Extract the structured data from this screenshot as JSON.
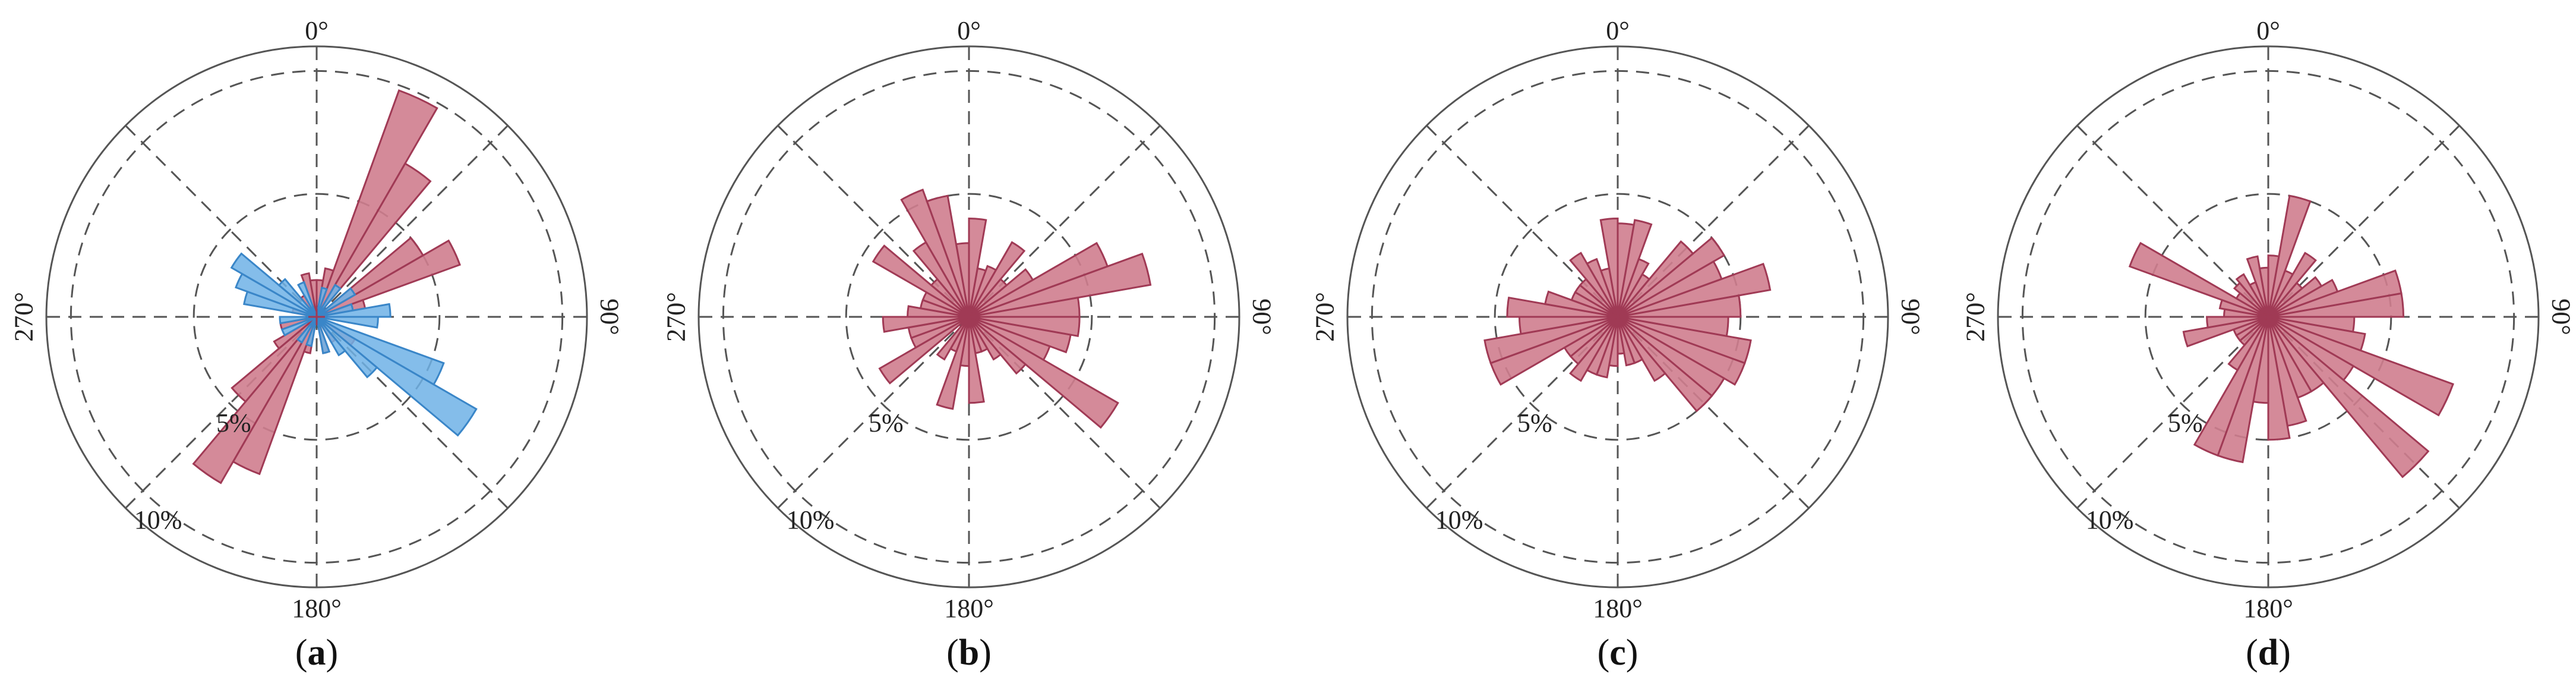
{
  "colors": {
    "primary_fill": "#cf7d8e",
    "primary_stroke": "#a03a55",
    "secondary_fill": "#6fb2e6",
    "secondary_stroke": "#3a86c8",
    "axis": "#555555"
  },
  "chart_data": [
    {
      "type": "polar-bar",
      "caption_letter": "a",
      "direction_labels": [
        "0°",
        "90°",
        "180°",
        "270°"
      ],
      "rings": [
        {
          "value": 5,
          "label": "5%"
        },
        {
          "value": 10,
          "label": "10%"
        }
      ],
      "rmax": 11,
      "bin_width_deg": 10,
      "series": [
        {
          "color_key": "primary",
          "bins": [
            {
              "angle": 5,
              "value": 1.5
            },
            {
              "angle": 15,
              "value": 2.0
            },
            {
              "angle": 25,
              "value": 9.8
            },
            {
              "angle": 35,
              "value": 7.2
            },
            {
              "angle": 55,
              "value": 5.0
            },
            {
              "angle": 65,
              "value": 6.2
            },
            {
              "angle": 75,
              "value": 2.0
            },
            {
              "angle": 125,
              "value": 1.8
            },
            {
              "angle": 145,
              "value": 1.2
            },
            {
              "angle": 165,
              "value": 1.5
            },
            {
              "angle": 195,
              "value": 1.5
            },
            {
              "angle": 205,
              "value": 6.8
            },
            {
              "angle": 215,
              "value": 7.8
            },
            {
              "angle": 225,
              "value": 4.5
            },
            {
              "angle": 235,
              "value": 2.0
            },
            {
              "angle": 255,
              "value": 1.5
            },
            {
              "angle": 285,
              "value": 1.0
            },
            {
              "angle": 325,
              "value": 1.0
            },
            {
              "angle": 345,
              "value": 1.8
            },
            {
              "angle": 355,
              "value": 1.5
            }
          ]
        },
        {
          "color_key": "secondary",
          "bins": [
            {
              "angle": 15,
              "value": 1.2
            },
            {
              "angle": 35,
              "value": 1.5
            },
            {
              "angle": 55,
              "value": 1.8
            },
            {
              "angle": 75,
              "value": 1.5
            },
            {
              "angle": 85,
              "value": 3.0
            },
            {
              "angle": 95,
              "value": 2.5
            },
            {
              "angle": 115,
              "value": 5.5
            },
            {
              "angle": 125,
              "value": 7.5
            },
            {
              "angle": 135,
              "value": 3.2
            },
            {
              "angle": 145,
              "value": 1.8
            },
            {
              "angle": 165,
              "value": 1.5
            },
            {
              "angle": 195,
              "value": 1.2
            },
            {
              "angle": 215,
              "value": 1.2
            },
            {
              "angle": 245,
              "value": 1.5
            },
            {
              "angle": 265,
              "value": 1.5
            },
            {
              "angle": 285,
              "value": 3.0
            },
            {
              "angle": 295,
              "value": 3.5
            },
            {
              "angle": 305,
              "value": 4.0
            },
            {
              "angle": 315,
              "value": 2.0
            },
            {
              "angle": 335,
              "value": 1.5
            }
          ]
        }
      ]
    },
    {
      "type": "polar-bar",
      "caption_letter": "b",
      "direction_labels": [
        "0°",
        "90°",
        "180°",
        "270°"
      ],
      "rings": [
        {
          "value": 5,
          "label": "5%"
        },
        {
          "value": 10,
          "label": "10%"
        }
      ],
      "rmax": 11,
      "bin_width_deg": 10,
      "series": [
        {
          "color_key": "primary",
          "bins": [
            {
              "angle": 5,
              "value": 4.0
            },
            {
              "angle": 15,
              "value": 2.0
            },
            {
              "angle": 25,
              "value": 2.2
            },
            {
              "angle": 35,
              "value": 3.5
            },
            {
              "angle": 45,
              "value": 2.0
            },
            {
              "angle": 55,
              "value": 3.0
            },
            {
              "angle": 65,
              "value": 6.0
            },
            {
              "angle": 75,
              "value": 7.5
            },
            {
              "angle": 85,
              "value": 4.5
            },
            {
              "angle": 95,
              "value": 4.5
            },
            {
              "angle": 105,
              "value": 4.2
            },
            {
              "angle": 115,
              "value": 3.5
            },
            {
              "angle": 125,
              "value": 7.0
            },
            {
              "angle": 135,
              "value": 3.0
            },
            {
              "angle": 145,
              "value": 2.0
            },
            {
              "angle": 155,
              "value": 1.5
            },
            {
              "angle": 165,
              "value": 1.5
            },
            {
              "angle": 175,
              "value": 3.5
            },
            {
              "angle": 185,
              "value": 2.0
            },
            {
              "angle": 195,
              "value": 3.8
            },
            {
              "angle": 205,
              "value": 1.5
            },
            {
              "angle": 215,
              "value": 2.0
            },
            {
              "angle": 235,
              "value": 4.2
            },
            {
              "angle": 245,
              "value": 2.5
            },
            {
              "angle": 255,
              "value": 2.5
            },
            {
              "angle": 265,
              "value": 3.5
            },
            {
              "angle": 275,
              "value": 2.5
            },
            {
              "angle": 285,
              "value": 2.0
            },
            {
              "angle": 295,
              "value": 2.0
            },
            {
              "angle": 305,
              "value": 4.5
            },
            {
              "angle": 315,
              "value": 2.0
            },
            {
              "angle": 325,
              "value": 3.5
            },
            {
              "angle": 335,
              "value": 5.5
            },
            {
              "angle": 345,
              "value": 5.0
            },
            {
              "angle": 355,
              "value": 3.0
            }
          ]
        }
      ]
    },
    {
      "type": "polar-bar",
      "caption_letter": "c",
      "direction_labels": [
        "0°",
        "90°",
        "180°",
        "270°"
      ],
      "rings": [
        {
          "value": 5,
          "label": "5%"
        },
        {
          "value": 10,
          "label": "10%"
        }
      ],
      "rmax": 11,
      "bin_width_deg": 10,
      "series": [
        {
          "color_key": "primary",
          "bins": [
            {
              "angle": 5,
              "value": 3.8
            },
            {
              "angle": 15,
              "value": 4.0
            },
            {
              "angle": 25,
              "value": 2.5
            },
            {
              "angle": 35,
              "value": 2.0
            },
            {
              "angle": 45,
              "value": 4.0
            },
            {
              "angle": 55,
              "value": 5.0
            },
            {
              "angle": 65,
              "value": 4.5
            },
            {
              "angle": 75,
              "value": 6.3
            },
            {
              "angle": 85,
              "value": 5.0
            },
            {
              "angle": 95,
              "value": 4.5
            },
            {
              "angle": 105,
              "value": 5.5
            },
            {
              "angle": 115,
              "value": 5.5
            },
            {
              "angle": 125,
              "value": 5.0
            },
            {
              "angle": 135,
              "value": 5.0
            },
            {
              "angle": 145,
              "value": 3.0
            },
            {
              "angle": 155,
              "value": 2.0
            },
            {
              "angle": 165,
              "value": 2.0
            },
            {
              "angle": 175,
              "value": 1.5
            },
            {
              "angle": 185,
              "value": 2.0
            },
            {
              "angle": 195,
              "value": 2.5
            },
            {
              "angle": 205,
              "value": 2.5
            },
            {
              "angle": 215,
              "value": 3.0
            },
            {
              "angle": 225,
              "value": 2.5
            },
            {
              "angle": 235,
              "value": 2.5
            },
            {
              "angle": 245,
              "value": 5.5
            },
            {
              "angle": 255,
              "value": 5.5
            },
            {
              "angle": 265,
              "value": 4.0
            },
            {
              "angle": 275,
              "value": 4.5
            },
            {
              "angle": 285,
              "value": 3.0
            },
            {
              "angle": 295,
              "value": 2.0
            },
            {
              "angle": 305,
              "value": 2.0
            },
            {
              "angle": 315,
              "value": 2.0
            },
            {
              "angle": 325,
              "value": 3.0
            },
            {
              "angle": 335,
              "value": 2.5
            },
            {
              "angle": 345,
              "value": 2.0
            },
            {
              "angle": 355,
              "value": 4.0
            }
          ]
        }
      ]
    },
    {
      "type": "polar-bar",
      "caption_letter": "d",
      "direction_labels": [
        "0°",
        "90°",
        "180°",
        "270°"
      ],
      "rings": [
        {
          "value": 5,
          "label": "5%"
        },
        {
          "value": 10,
          "label": "10%"
        }
      ],
      "rmax": 11,
      "bin_width_deg": 10,
      "series": [
        {
          "color_key": "primary",
          "bins": [
            {
              "angle": 5,
              "value": 2.5
            },
            {
              "angle": 15,
              "value": 5.0
            },
            {
              "angle": 25,
              "value": 2.0
            },
            {
              "angle": 35,
              "value": 3.0
            },
            {
              "angle": 45,
              "value": 1.8
            },
            {
              "angle": 55,
              "value": 2.5
            },
            {
              "angle": 65,
              "value": 3.0
            },
            {
              "angle": 75,
              "value": 5.5
            },
            {
              "angle": 85,
              "value": 5.5
            },
            {
              "angle": 95,
              "value": 3.5
            },
            {
              "angle": 105,
              "value": 4.0
            },
            {
              "angle": 115,
              "value": 8.0
            },
            {
              "angle": 125,
              "value": 4.0
            },
            {
              "angle": 135,
              "value": 8.5
            },
            {
              "angle": 145,
              "value": 3.5
            },
            {
              "angle": 155,
              "value": 3.5
            },
            {
              "angle": 165,
              "value": 4.5
            },
            {
              "angle": 175,
              "value": 5.0
            },
            {
              "angle": 185,
              "value": 3.5
            },
            {
              "angle": 195,
              "value": 6.0
            },
            {
              "angle": 205,
              "value": 6.0
            },
            {
              "angle": 215,
              "value": 2.5
            },
            {
              "angle": 225,
              "value": 1.5
            },
            {
              "angle": 235,
              "value": 1.5
            },
            {
              "angle": 245,
              "value": 1.5
            },
            {
              "angle": 255,
              "value": 3.5
            },
            {
              "angle": 265,
              "value": 2.5
            },
            {
              "angle": 275,
              "value": 1.8
            },
            {
              "angle": 285,
              "value": 2.0
            },
            {
              "angle": 295,
              "value": 6.0
            },
            {
              "angle": 305,
              "value": 1.5
            },
            {
              "angle": 315,
              "value": 1.8
            },
            {
              "angle": 325,
              "value": 2.0
            },
            {
              "angle": 335,
              "value": 1.5
            },
            {
              "angle": 345,
              "value": 2.5
            },
            {
              "angle": 355,
              "value": 2.0
            }
          ]
        }
      ]
    }
  ]
}
